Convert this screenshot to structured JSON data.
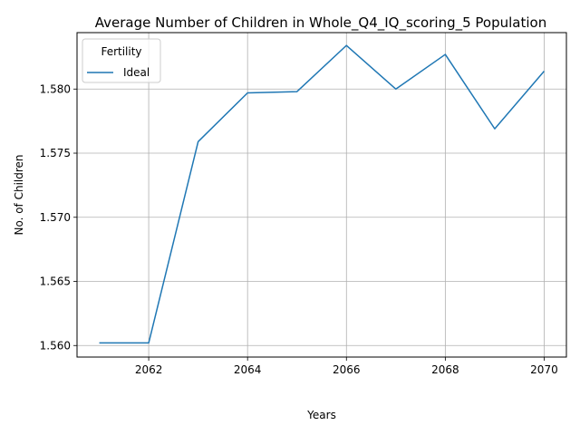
{
  "chart_data": {
    "type": "line",
    "title": "Average Number of Children in Whole_Q4_IQ_scoring_5 Population",
    "xlabel": "Years",
    "ylabel": "No. of Children",
    "x": [
      2061,
      2062,
      2063,
      2064,
      2065,
      2066,
      2067,
      2068,
      2069,
      2070
    ],
    "series": [
      {
        "name": "Ideal",
        "color": "#1f77b4",
        "values": [
          1.5602,
          1.5602,
          1.5759,
          1.5797,
          1.5798,
          1.5834,
          1.58,
          1.5827,
          1.5769,
          1.5814
        ]
      }
    ],
    "xlim": [
      2060.55,
      2070.45
    ],
    "ylim": [
      1.5591,
      1.5844
    ],
    "xticks": [
      2062,
      2064,
      2066,
      2068,
      2070
    ],
    "xtick_labels": [
      "2062",
      "2064",
      "2066",
      "2068",
      "2070"
    ],
    "yticks": [
      1.56,
      1.565,
      1.57,
      1.575,
      1.58
    ],
    "ytick_labels": [
      "1.560",
      "1.565",
      "1.570",
      "1.575",
      "1.580"
    ],
    "grid": true,
    "legend": {
      "title": "Fertility",
      "placement": "top-left"
    }
  }
}
